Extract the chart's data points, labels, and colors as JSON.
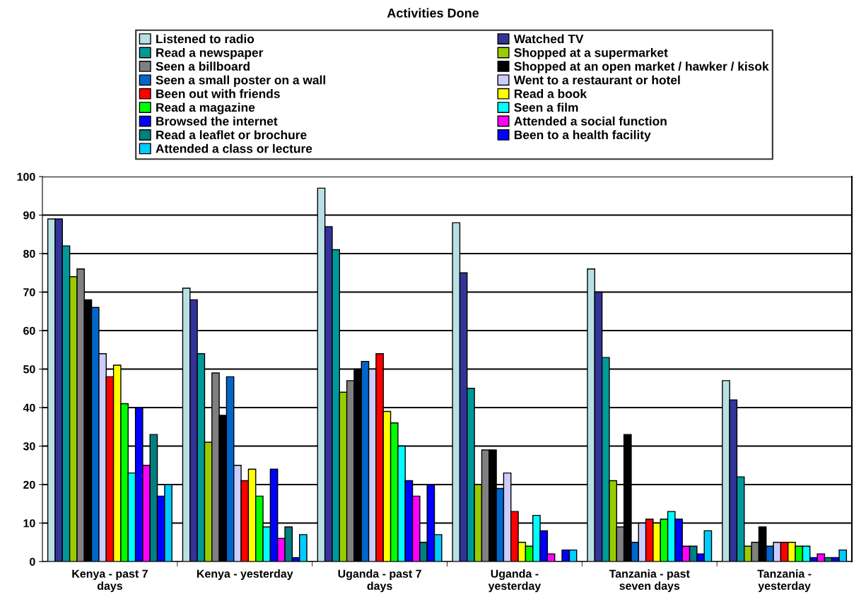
{
  "chart_data": {
    "type": "bar",
    "title": "Activities Done",
    "categories": [
      "Kenya - past 7 days",
      "Kenya - yesterday",
      "Uganda - past 7 days",
      "Uganda - yesterday",
      "Tanzania - past seven days",
      "Tanzania - yesterday"
    ],
    "series": [
      {
        "name": "Listened to radio",
        "color": "#b8e0e4",
        "values": [
          89,
          71,
          97,
          88,
          76,
          47
        ]
      },
      {
        "name": "Watched TV",
        "color": "#333399",
        "values": [
          89,
          68,
          87,
          75,
          70,
          42
        ]
      },
      {
        "name": "Read a newspaper",
        "color": "#009999",
        "values": [
          82,
          54,
          81,
          45,
          53,
          22
        ]
      },
      {
        "name": "Shopped at a supermarket",
        "color": "#99cc00",
        "values": [
          74,
          31,
          44,
          20,
          21,
          4
        ]
      },
      {
        "name": "Seen a billboard",
        "color": "#808080",
        "values": [
          76,
          49,
          47,
          29,
          9,
          5
        ]
      },
      {
        "name": "Shopped at an open market / hawker / kisok",
        "color": "#000000",
        "values": [
          68,
          38,
          50,
          29,
          33,
          9
        ]
      },
      {
        "name": "Seen a small poster on a wall",
        "color": "#0066cc",
        "values": [
          66,
          48,
          52,
          19,
          5,
          4
        ]
      },
      {
        "name": "Went to a restaurant or hotel",
        "color": "#ccccff",
        "values": [
          54,
          25,
          50,
          23,
          10,
          5
        ]
      },
      {
        "name": "Been out with friends",
        "color": "#ff0000",
        "values": [
          48,
          21,
          54,
          13,
          11,
          5
        ]
      },
      {
        "name": "Read a book",
        "color": "#ffff00",
        "values": [
          51,
          24,
          39,
          5,
          10,
          5
        ]
      },
      {
        "name": "Read a magazine",
        "color": "#00ff00",
        "values": [
          41,
          17,
          36,
          4,
          11,
          4
        ]
      },
      {
        "name": "Seen a film",
        "color": "#00ffff",
        "values": [
          23,
          9,
          30,
          12,
          13,
          4
        ]
      },
      {
        "name": "Browsed the internet",
        "color": "#0000ff",
        "values": [
          40,
          24,
          21,
          8,
          11,
          1
        ]
      },
      {
        "name": "Attended a social function",
        "color": "#ff00ff",
        "values": [
          25,
          6,
          17,
          2,
          4,
          2
        ]
      },
      {
        "name": "Read a leaflet or brochure",
        "color": "#008080",
        "values": [
          33,
          9,
          5,
          null,
          4,
          1
        ]
      },
      {
        "name": "Been to a health facility",
        "color": "#0000ff",
        "values": [
          17,
          1,
          20,
          3,
          2,
          1
        ]
      },
      {
        "name": "Attended a class or lecture",
        "color": "#00ccff",
        "values": [
          20,
          7,
          7,
          3,
          8,
          3
        ]
      }
    ],
    "ylim": [
      0,
      100
    ],
    "yticks": [
      0,
      10,
      20,
      30,
      40,
      50,
      60,
      70,
      80,
      90,
      100
    ],
    "grid": "y",
    "legend": "top"
  }
}
